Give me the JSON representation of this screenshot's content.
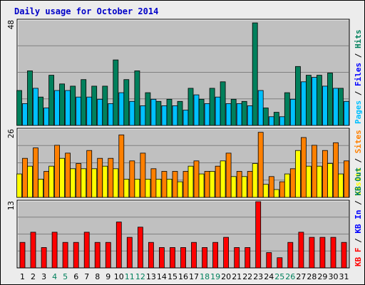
{
  "title": "Daily usage for October 2014",
  "colors": {
    "background": "#ececec",
    "panel": "#c0c0c0",
    "hits": "#00805c",
    "files": "#00c0ff",
    "pages": "#00c0ff",
    "sites": "#ff8000",
    "visits": "#ffff00",
    "kb_in": "#0000ff",
    "kb_out": "#00805c",
    "kb_f": "#ff0000",
    "weekend_label": "#00805c",
    "weekday_label": "#000000"
  },
  "chart_data": [
    {
      "type": "bar",
      "name": "hits-files-pages",
      "ymax_label": "48",
      "ylim": [
        0,
        48
      ],
      "legend": [
        {
          "text": "Pages",
          "color": "#00c0ff"
        },
        {
          "text": " / ",
          "color": "#000000"
        },
        {
          "text": "Files",
          "color": "#0000ff"
        },
        {
          "text": " / ",
          "color": "#000000"
        },
        {
          "text": "Hits",
          "color": "#00805c"
        }
      ],
      "categories": [
        "1",
        "2",
        "3",
        "4",
        "5",
        "6",
        "7",
        "8",
        "9",
        "10",
        "11",
        "12",
        "13",
        "14",
        "15",
        "16",
        "17",
        "18",
        "19",
        "20",
        "21",
        "22",
        "23",
        "24",
        "25",
        "26",
        "27",
        "28",
        "29",
        "30",
        "31"
      ],
      "series": [
        {
          "key": "hits",
          "values": [
            16,
            25,
            13,
            23,
            19,
            18,
            21,
            18,
            18,
            30,
            21,
            25,
            15,
            11,
            12,
            11,
            17,
            12,
            17,
            20,
            12,
            11,
            47,
            8,
            6,
            15,
            27,
            23,
            23,
            24,
            17
          ]
        },
        {
          "key": "files",
          "values": [
            10,
            17,
            8,
            16,
            16,
            13,
            13,
            12,
            10,
            15,
            11,
            9,
            12,
            9,
            9,
            7,
            14,
            10,
            13,
            10,
            10,
            9,
            16,
            4,
            4,
            12,
            20,
            22,
            18,
            17,
            11
          ]
        }
      ]
    },
    {
      "type": "bar",
      "name": "visits-sites",
      "ymax_label": "26",
      "ylim": [
        0,
        26
      ],
      "legend": [
        {
          "text": "Visits",
          "color": "#ffff00"
        },
        {
          "text": " / ",
          "color": "#000000"
        },
        {
          "text": "Sites",
          "color": "#ff8000"
        }
      ],
      "categories": [
        "1",
        "2",
        "3",
        "4",
        "5",
        "6",
        "7",
        "8",
        "9",
        "10",
        "11",
        "12",
        "13",
        "14",
        "15",
        "16",
        "17",
        "18",
        "19",
        "20",
        "21",
        "22",
        "23",
        "24",
        "25",
        "26",
        "27",
        "28",
        "29",
        "30",
        "31"
      ],
      "series": [
        {
          "key": "visits",
          "values": [
            9,
            12,
            7,
            12,
            15,
            11,
            11,
            11,
            12,
            11,
            7,
            7,
            7,
            7,
            7,
            6,
            12,
            9,
            10,
            14,
            8,
            8,
            13,
            5,
            3,
            9,
            18,
            12,
            12,
            13,
            9
          ]
        },
        {
          "key": "sites",
          "values": [
            15,
            19,
            10,
            20,
            17,
            13,
            18,
            15,
            15,
            24,
            14,
            17,
            11,
            10,
            10,
            10,
            14,
            10,
            12,
            17,
            10,
            10,
            25,
            8,
            6,
            11,
            23,
            20,
            18,
            21,
            14
          ]
        }
      ]
    },
    {
      "type": "bar",
      "name": "kb-traffic",
      "ymax_label": "13",
      "ylim": [
        0,
        13
      ],
      "legend": [
        {
          "text": "KB F",
          "color": "#ff0000"
        },
        {
          "text": " / ",
          "color": "#000000"
        },
        {
          "text": "KB In",
          "color": "#0000ff"
        },
        {
          "text": " / ",
          "color": "#000000"
        },
        {
          "text": "KB Out",
          "color": "#00805c"
        }
      ],
      "categories": [
        "1",
        "2",
        "3",
        "4",
        "5",
        "6",
        "7",
        "8",
        "9",
        "10",
        "11",
        "12",
        "13",
        "14",
        "15",
        "16",
        "17",
        "18",
        "19",
        "20",
        "21",
        "22",
        "23",
        "24",
        "25",
        "26",
        "27",
        "28",
        "29",
        "30",
        "31"
      ],
      "series": [
        {
          "key": "kb_f",
          "values": [
            5,
            7,
            4,
            7,
            5,
            5,
            7,
            5,
            5,
            9,
            6,
            8,
            5,
            4,
            4,
            4,
            5,
            4,
            5,
            6,
            4,
            4,
            13,
            3,
            2,
            5,
            7,
            6,
            6,
            6,
            5
          ]
        }
      ]
    }
  ],
  "x_labels": [
    {
      "text": "1",
      "weekend": false
    },
    {
      "text": "2",
      "weekend": false
    },
    {
      "text": "3",
      "weekend": false
    },
    {
      "text": "4",
      "weekend": true
    },
    {
      "text": "5",
      "weekend": true
    },
    {
      "text": "6",
      "weekend": false
    },
    {
      "text": "7",
      "weekend": false
    },
    {
      "text": "8",
      "weekend": false
    },
    {
      "text": "9",
      "weekend": false
    },
    {
      "text": "10",
      "weekend": false
    },
    {
      "text": "11",
      "weekend": true
    },
    {
      "text": "12",
      "weekend": true
    },
    {
      "text": "13",
      "weekend": false
    },
    {
      "text": "14",
      "weekend": false
    },
    {
      "text": "15",
      "weekend": false
    },
    {
      "text": "16",
      "weekend": false
    },
    {
      "text": "17",
      "weekend": false
    },
    {
      "text": "18",
      "weekend": true
    },
    {
      "text": "19",
      "weekend": true
    },
    {
      "text": "20",
      "weekend": false
    },
    {
      "text": "21",
      "weekend": false
    },
    {
      "text": "22",
      "weekend": false
    },
    {
      "text": "23",
      "weekend": false
    },
    {
      "text": "24",
      "weekend": false
    },
    {
      "text": "25",
      "weekend": true
    },
    {
      "text": "26",
      "weekend": true
    },
    {
      "text": "27",
      "weekend": false
    },
    {
      "text": "28",
      "weekend": false
    },
    {
      "text": "29",
      "weekend": false
    },
    {
      "text": "30",
      "weekend": false
    },
    {
      "text": "31",
      "weekend": false
    }
  ]
}
